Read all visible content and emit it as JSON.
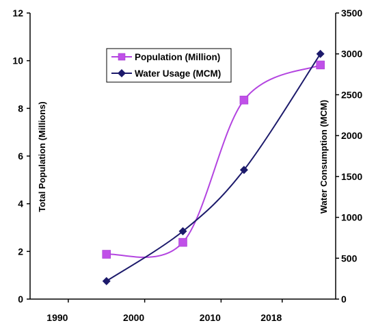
{
  "chart_data": {
    "type": "line",
    "x": [
      1995,
      2005,
      2013,
      2023
    ],
    "x_ticks": [
      1990,
      2000,
      2010,
      2018
    ],
    "xlim": [
      1985,
      2025
    ],
    "series": [
      {
        "name": "Population (Million)",
        "axis": "left",
        "values": [
          1.88,
          2.38,
          8.35,
          9.82
        ],
        "color": "#b344e0",
        "marker_color": "#c050e8",
        "marker": "square",
        "line_smooth": true
      },
      {
        "name": "Water Usage (MCM)",
        "axis": "right",
        "values": [
          220,
          830,
          1580,
          3000
        ],
        "color": "#1c1a6b",
        "marker_color": "#1c1a6b",
        "marker": "diamond",
        "line_smooth": true
      }
    ],
    "y_left": {
      "label": "Total Population (Millions)",
      "ylim": [
        0,
        12
      ],
      "ticks": [
        "0",
        "2",
        "4",
        "6",
        "8",
        "10",
        "12"
      ]
    },
    "y_right": {
      "label": "Water Consumption (MCM)",
      "ylim": [
        0,
        3500
      ],
      "ticks": [
        "0",
        "500",
        "1000",
        "1500",
        "2000",
        "2500",
        "3000",
        "3500"
      ]
    },
    "legend": {
      "placement": "top-center",
      "items": [
        "Population (Million)",
        "Water Usage (MCM)"
      ]
    },
    "grid": false
  }
}
